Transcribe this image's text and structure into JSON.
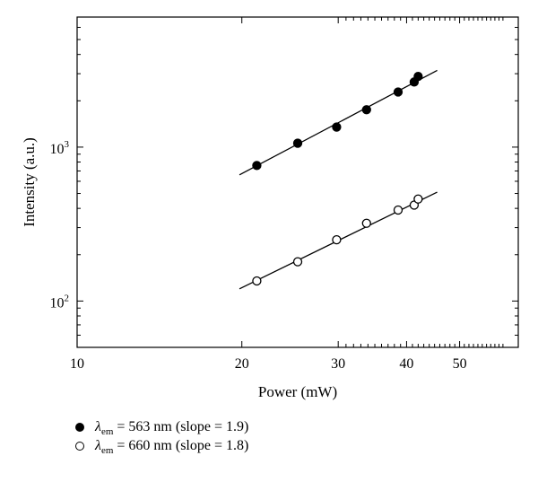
{
  "chart_data": {
    "type": "scatter",
    "x_scale": "log",
    "y_scale": "log",
    "xlabel": "Power (mW)",
    "ylabel": "Intensity (a.u.)",
    "xlim": [
      10,
      64
    ],
    "ylim": [
      50,
      7000
    ],
    "x_ticklabels": [
      "10",
      "20",
      "30",
      "40",
      "50"
    ],
    "y_ticklabels": [
      {
        "base": "10",
        "exp": "2"
      },
      {
        "base": "10",
        "exp": "3"
      }
    ],
    "grid": false,
    "legend_position": "below",
    "series": [
      {
        "name": "λ em = 563 nm (slope = 1.9)",
        "marker": "filled-circle",
        "x": [
          21.3,
          25.3,
          29.8,
          33.8,
          38.6,
          41.3,
          42.0
        ],
        "y": [
          760,
          1060,
          1350,
          1750,
          2280,
          2650,
          2880
        ],
        "fit": {
          "x": [
            19.8,
            45.5
          ],
          "y": [
            660,
            3150
          ]
        }
      },
      {
        "name": "λ em = 660 nm (slope = 1.8)",
        "marker": "open-circle",
        "x": [
          21.3,
          25.3,
          29.8,
          33.8,
          38.6,
          41.3,
          42.0
        ],
        "y": [
          135,
          180,
          250,
          320,
          390,
          420,
          460
        ],
        "fit": {
          "x": [
            19.8,
            45.5
          ],
          "y": [
            120,
            510
          ]
        }
      }
    ]
  },
  "legend": {
    "items": [
      {
        "symbol": "λ",
        "sub": "em",
        "text": " = 563 nm (slope = 1.9)",
        "marker": "filled"
      },
      {
        "symbol": "λ",
        "sub": "em",
        "text": " = 660 nm (slope = 1.8)",
        "marker": "open"
      }
    ]
  }
}
